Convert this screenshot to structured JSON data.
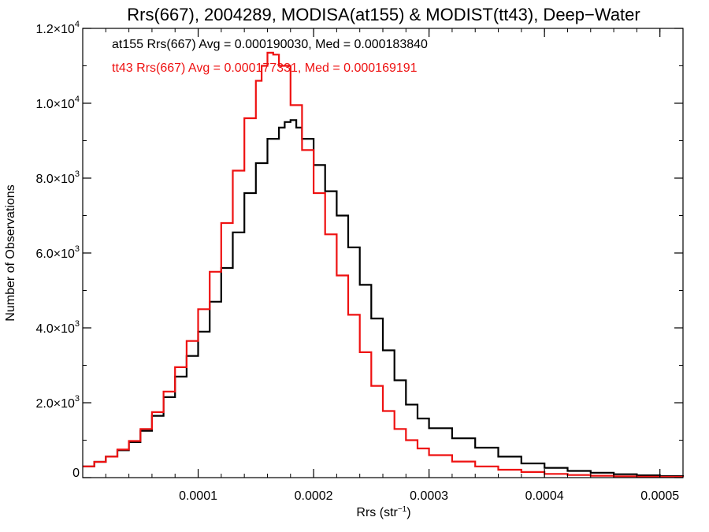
{
  "chart_data": {
    "type": "line",
    "step": true,
    "title": "Rrs(667), 2004289, MODISA(at155) & MODIST(tt43), Deep−Water",
    "xlabel": "Rrs (str",
    "xlabel_sup": "−1",
    "xlabel_close": ")",
    "ylabel": "Number of Observations",
    "xlim": [
      0.0,
      0.00052
    ],
    "ylim": [
      0,
      12000
    ],
    "x_ticks": [
      {
        "value": 0.0001,
        "label": "0.0001"
      },
      {
        "value": 0.0002,
        "label": "0.0002"
      },
      {
        "value": 0.0003,
        "label": "0.0003"
      },
      {
        "value": 0.0004,
        "label": "0.0004"
      },
      {
        "value": 0.0005,
        "label": "0.0005"
      }
    ],
    "y_ticks": [
      {
        "value": 0,
        "mant": "0",
        "exp": ""
      },
      {
        "value": 2000,
        "mant": "2.0×10",
        "exp": "3"
      },
      {
        "value": 4000,
        "mant": "4.0×10",
        "exp": "3"
      },
      {
        "value": 6000,
        "mant": "6.0×10",
        "exp": "3"
      },
      {
        "value": 8000,
        "mant": "8.0×10",
        "exp": "3"
      },
      {
        "value": 10000,
        "mant": "1.0×10",
        "exp": "4"
      },
      {
        "value": 12000,
        "mant": "1.2×10",
        "exp": "4"
      }
    ],
    "x_minor_step": 2e-05,
    "y_minor_step": 1000,
    "series": [
      {
        "name": "at155",
        "color": "#000000",
        "annotation": "at155 Rrs(667) Avg = 0.000190030, Med = 0.000183840",
        "x": [
          0.0,
          1e-05,
          2e-05,
          3e-05,
          4e-05,
          5e-05,
          6e-05,
          7e-05,
          8e-05,
          9e-05,
          0.0001,
          0.00011,
          0.00012,
          0.00013,
          0.00014,
          0.00015,
          0.00016,
          0.00017,
          0.000175,
          0.00018,
          0.000185,
          0.00019,
          0.0002,
          0.00021,
          0.00022,
          0.00023,
          0.00024,
          0.00025,
          0.00026,
          0.00027,
          0.00028,
          0.00029,
          0.0003,
          0.00032,
          0.00034,
          0.00036,
          0.00038,
          0.0004,
          0.00042,
          0.00044,
          0.00046,
          0.00048,
          0.0005,
          0.00052
        ],
        "y": [
          300,
          420,
          560,
          730,
          950,
          1250,
          1650,
          2150,
          2700,
          3250,
          3900,
          4700,
          5600,
          6550,
          7600,
          8400,
          9050,
          9350,
          9500,
          9550,
          9350,
          9050,
          8350,
          7650,
          7000,
          6150,
          5150,
          4250,
          3400,
          2600,
          1950,
          1580,
          1320,
          1050,
          800,
          560,
          380,
          260,
          180,
          130,
          90,
          60,
          40,
          30
        ]
      },
      {
        "name": "tt43",
        "color": "#ee1111",
        "annotation": "tt43 Rrs(667) Avg = 0.000177331, Med = 0.000169191",
        "x": [
          0.0,
          1e-05,
          2e-05,
          3e-05,
          4e-05,
          5e-05,
          6e-05,
          7e-05,
          8e-05,
          9e-05,
          0.0001,
          0.00011,
          0.00012,
          0.00013,
          0.00014,
          0.00015,
          0.000155,
          0.00016,
          0.000165,
          0.00017,
          0.00018,
          0.00019,
          0.0002,
          0.00021,
          0.00022,
          0.00023,
          0.00024,
          0.00025,
          0.00026,
          0.00027,
          0.00028,
          0.00029,
          0.0003,
          0.00032,
          0.00034,
          0.00036,
          0.00038,
          0.0004,
          0.00042,
          0.00044,
          0.00046,
          0.00048,
          0.0005,
          0.00052
        ],
        "y": [
          300,
          420,
          560,
          750,
          980,
          1300,
          1750,
          2300,
          2950,
          3650,
          4500,
          5500,
          6800,
          8200,
          9600,
          10600,
          11000,
          11350,
          11300,
          11000,
          9950,
          8750,
          7600,
          6500,
          5400,
          4350,
          3350,
          2450,
          1780,
          1300,
          1000,
          780,
          600,
          430,
          300,
          210,
          150,
          100,
          70,
          50,
          35,
          25,
          20,
          15
        ]
      }
    ]
  }
}
